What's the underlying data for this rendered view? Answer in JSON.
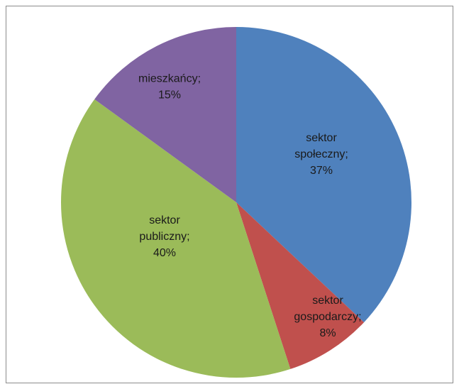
{
  "chart_data": {
    "type": "pie",
    "title": "",
    "slices": [
      {
        "name": "sektor społeczny",
        "value": 37,
        "label": [
          "sektor",
          "społeczny;",
          "37%"
        ],
        "color": "#4F81BD"
      },
      {
        "name": "sektor gospodarczy",
        "value": 8,
        "label": [
          "sektor",
          "gospodarczy;",
          "8%"
        ],
        "color": "#C0504D"
      },
      {
        "name": "sektor publiczny",
        "value": 40,
        "label": [
          "sektor",
          "publiczny;",
          "40%"
        ],
        "color": "#9BBB59"
      },
      {
        "name": "mieszkańcy",
        "value": 15,
        "label": [
          "mieszkańcy;",
          "15%"
        ],
        "color": "#8064A2"
      }
    ],
    "start_angle": "12 o'clock",
    "direction": "clockwise"
  }
}
